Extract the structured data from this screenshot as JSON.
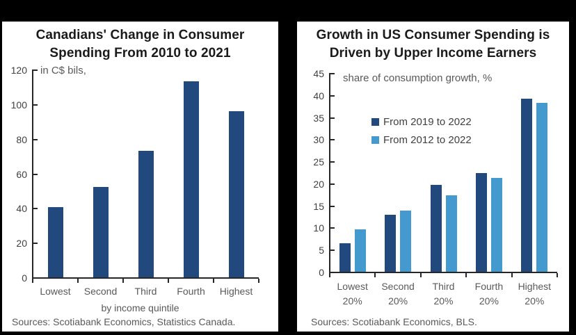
{
  "page": {
    "background_color": "#000000",
    "panel_color": "#ffffff"
  },
  "chart_data": [
    {
      "type": "bar",
      "title": "Canadians' Change in Consumer Spending From 2010 to 2021",
      "title_lines": [
        "Canadians' Change in Consumer",
        "Spending From 2010 to 2021"
      ],
      "unit_label": "in C$ bils,",
      "categories": [
        "Lowest",
        "Second",
        "Third",
        "Fourth",
        "Highest"
      ],
      "values": [
        40.5,
        52,
        73,
        113,
        96
      ],
      "bar_color": "#21497D",
      "xlabel": "by income quintile",
      "ylabel": "",
      "ylim": [
        0,
        120
      ],
      "ytick_step": 20,
      "grid": false,
      "legend": null,
      "source": "Sources: Scotiabank Economics, Statistics Canada."
    },
    {
      "type": "bar",
      "grouped": true,
      "title": "Growth in US Consumer Spending is Driven by Upper Income Earners",
      "title_lines": [
        "Growth in US Consumer Spending is",
        "Driven by Upper Income Earners"
      ],
      "unit_label": "share of consumption growth, %",
      "categories": [
        [
          "Lowest",
          "20%"
        ],
        [
          "Second",
          "20%"
        ],
        [
          "Third",
          "20%"
        ],
        [
          "Fourth",
          "20%"
        ],
        [
          "Highest",
          "20%"
        ]
      ],
      "series": [
        {
          "name": "From 2019 to 2022",
          "color": "#21497D",
          "values": [
            6.5,
            12.9,
            19.7,
            22.3,
            39.2
          ]
        },
        {
          "name": "From 2012 to 2022",
          "color": "#4499CE",
          "values": [
            9.6,
            13.9,
            17.3,
            21.2,
            38.3
          ]
        }
      ],
      "xlabel": "",
      "ylabel": "",
      "ylim": [
        0,
        45
      ],
      "ytick_step": 5,
      "grid": false,
      "legend_position": "upper-left-inside",
      "source": "Sources: Scotiabank Economics, BLS."
    }
  ]
}
